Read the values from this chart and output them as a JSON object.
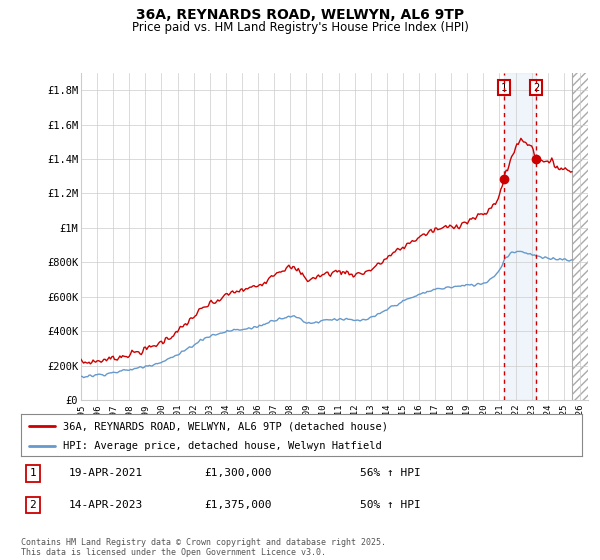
{
  "title": "36A, REYNARDS ROAD, WELWYN, AL6 9TP",
  "subtitle": "Price paid vs. HM Land Registry's House Price Index (HPI)",
  "ylabel_ticks": [
    "£0",
    "£200K",
    "£400K",
    "£600K",
    "£800K",
    "£1M",
    "£1.2M",
    "£1.4M",
    "£1.6M",
    "£1.8M"
  ],
  "ytick_values": [
    0,
    200000,
    400000,
    600000,
    800000,
    1000000,
    1200000,
    1400000,
    1600000,
    1800000
  ],
  "ylim": [
    0,
    1900000
  ],
  "xlim_start": 1995.0,
  "xlim_end": 2026.5,
  "red_line_color": "#cc0000",
  "blue_line_color": "#6699cc",
  "vline1_x": 2021.28,
  "vline2_x": 2023.28,
  "vline_color": "#cc0000",
  "hatch_start": 2025.5,
  "sale1_label": "1",
  "sale1_date": "19-APR-2021",
  "sale1_price": "£1,300,000",
  "sale1_hpi": "56% ↑ HPI",
  "sale2_label": "2",
  "sale2_date": "14-APR-2023",
  "sale2_price": "£1,375,000",
  "sale2_hpi": "50% ↑ HPI",
  "legend_line1": "36A, REYNARDS ROAD, WELWYN, AL6 9TP (detached house)",
  "legend_line2": "HPI: Average price, detached house, Welwyn Hatfield",
  "footer": "Contains HM Land Registry data © Crown copyright and database right 2025.\nThis data is licensed under the Open Government Licence v3.0.",
  "background_color": "#ffffff",
  "grid_color": "#cccccc"
}
